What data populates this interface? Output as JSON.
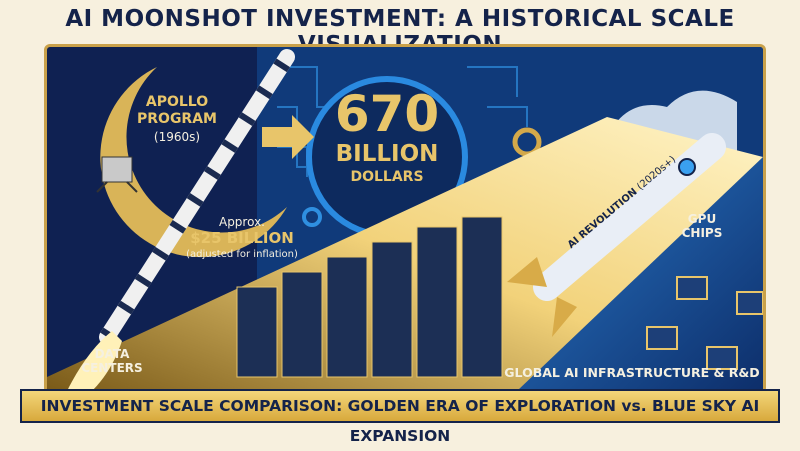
{
  "title": "AI MOONSHOT INVESTMENT: A HISTORICAL SCALE VISUALIZATION",
  "apollo": {
    "name": "APOLLO PROGRAM",
    "era": "(1960s)",
    "approx": "Approx.",
    "amount": "$25 BILLION",
    "note": "(adjusted for inflation)"
  },
  "ai": {
    "value": "670",
    "unit": "BILLION",
    "currency": "DOLLARS",
    "rocket_label": "AI REVOLUTION",
    "rocket_era": "(2020s+)"
  },
  "labels": {
    "data_centers": "DATA CENTERS",
    "gpu_chips": "GPU CHIPS",
    "global": "GLOBAL AI INFRASTRUCTURE & R&D",
    "chip_text": "GPU CHIPS"
  },
  "banner": "INVESTMENT SCALE COMPARISON: GOLDEN ERA OF EXPLORATION vs. BLUE SKY AI EXPANSION",
  "colors": {
    "navy": "#0f2152",
    "gold": "#e8c56a",
    "blue": "#1e6fc0",
    "cream": "#f7f0de"
  }
}
